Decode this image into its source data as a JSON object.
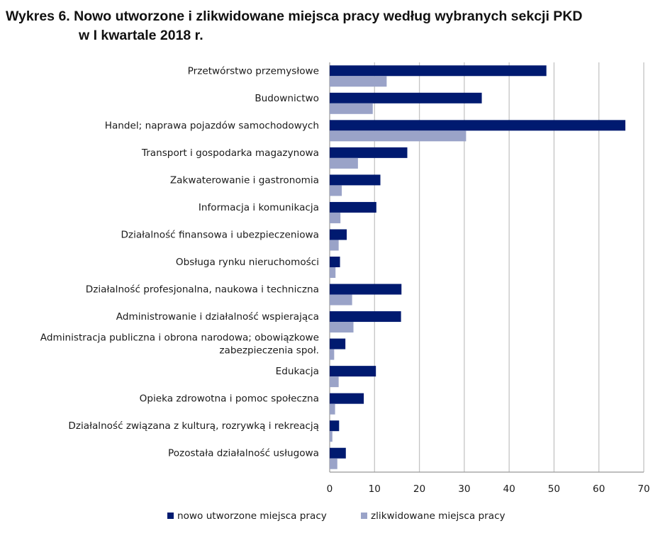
{
  "chart_data": {
    "type": "bar",
    "orientation": "horizontal",
    "title_line1": "Wykres 6. Nowo utworzone i zlikwidowane miejsca pracy według wybranych sekcji PKD",
    "title_line2": "w I kwartale 2018 r.",
    "categories": [
      [
        "Przetwórstwo przemysłowe"
      ],
      [
        "Budownictwo"
      ],
      [
        "Handel; naprawa pojazdów samochodowych"
      ],
      [
        "Transport i gospodarka magazynowa"
      ],
      [
        "Zakwaterowanie i gastronomia"
      ],
      [
        "Informacja i komunikacja"
      ],
      [
        "Działalność finansowa i ubezpieczeniowa"
      ],
      [
        "Obsługa rynku nieruchomości"
      ],
      [
        "Działalność profesjonalna, naukowa i techniczna"
      ],
      [
        "Administrowanie i działalność wspierająca"
      ],
      [
        "Administracja publiczna i obrona narodowa; obowiązkowe",
        "zabezpieczenia społ."
      ],
      [
        "Edukacja"
      ],
      [
        "Opieka zdrowotna i pomoc społeczna"
      ],
      [
        "Działalność związana z kulturą, rozrywką i rekreacją"
      ],
      [
        "Pozostała działalność usługowa"
      ]
    ],
    "series": [
      {
        "name": "nowo utworzone miejsca pracy",
        "color": "#001a70",
        "values": [
          48.3,
          33.9,
          65.9,
          17.3,
          11.3,
          10.4,
          3.8,
          2.3,
          16.0,
          15.9,
          3.5,
          10.3,
          7.6,
          2.1,
          3.6
        ]
      },
      {
        "name": "zlikwidowane miejsca pracy",
        "color": "#9aa3c8",
        "values": [
          12.7,
          9.6,
          30.4,
          6.3,
          2.7,
          2.4,
          2.0,
          1.3,
          5.0,
          5.3,
          1.0,
          2.0,
          1.2,
          0.6,
          1.7
        ]
      }
    ],
    "xlim": [
      0,
      70
    ],
    "xticks": [
      0,
      10,
      20,
      30,
      40,
      50,
      60,
      70
    ],
    "grid": true,
    "legend_position": "bottom"
  }
}
